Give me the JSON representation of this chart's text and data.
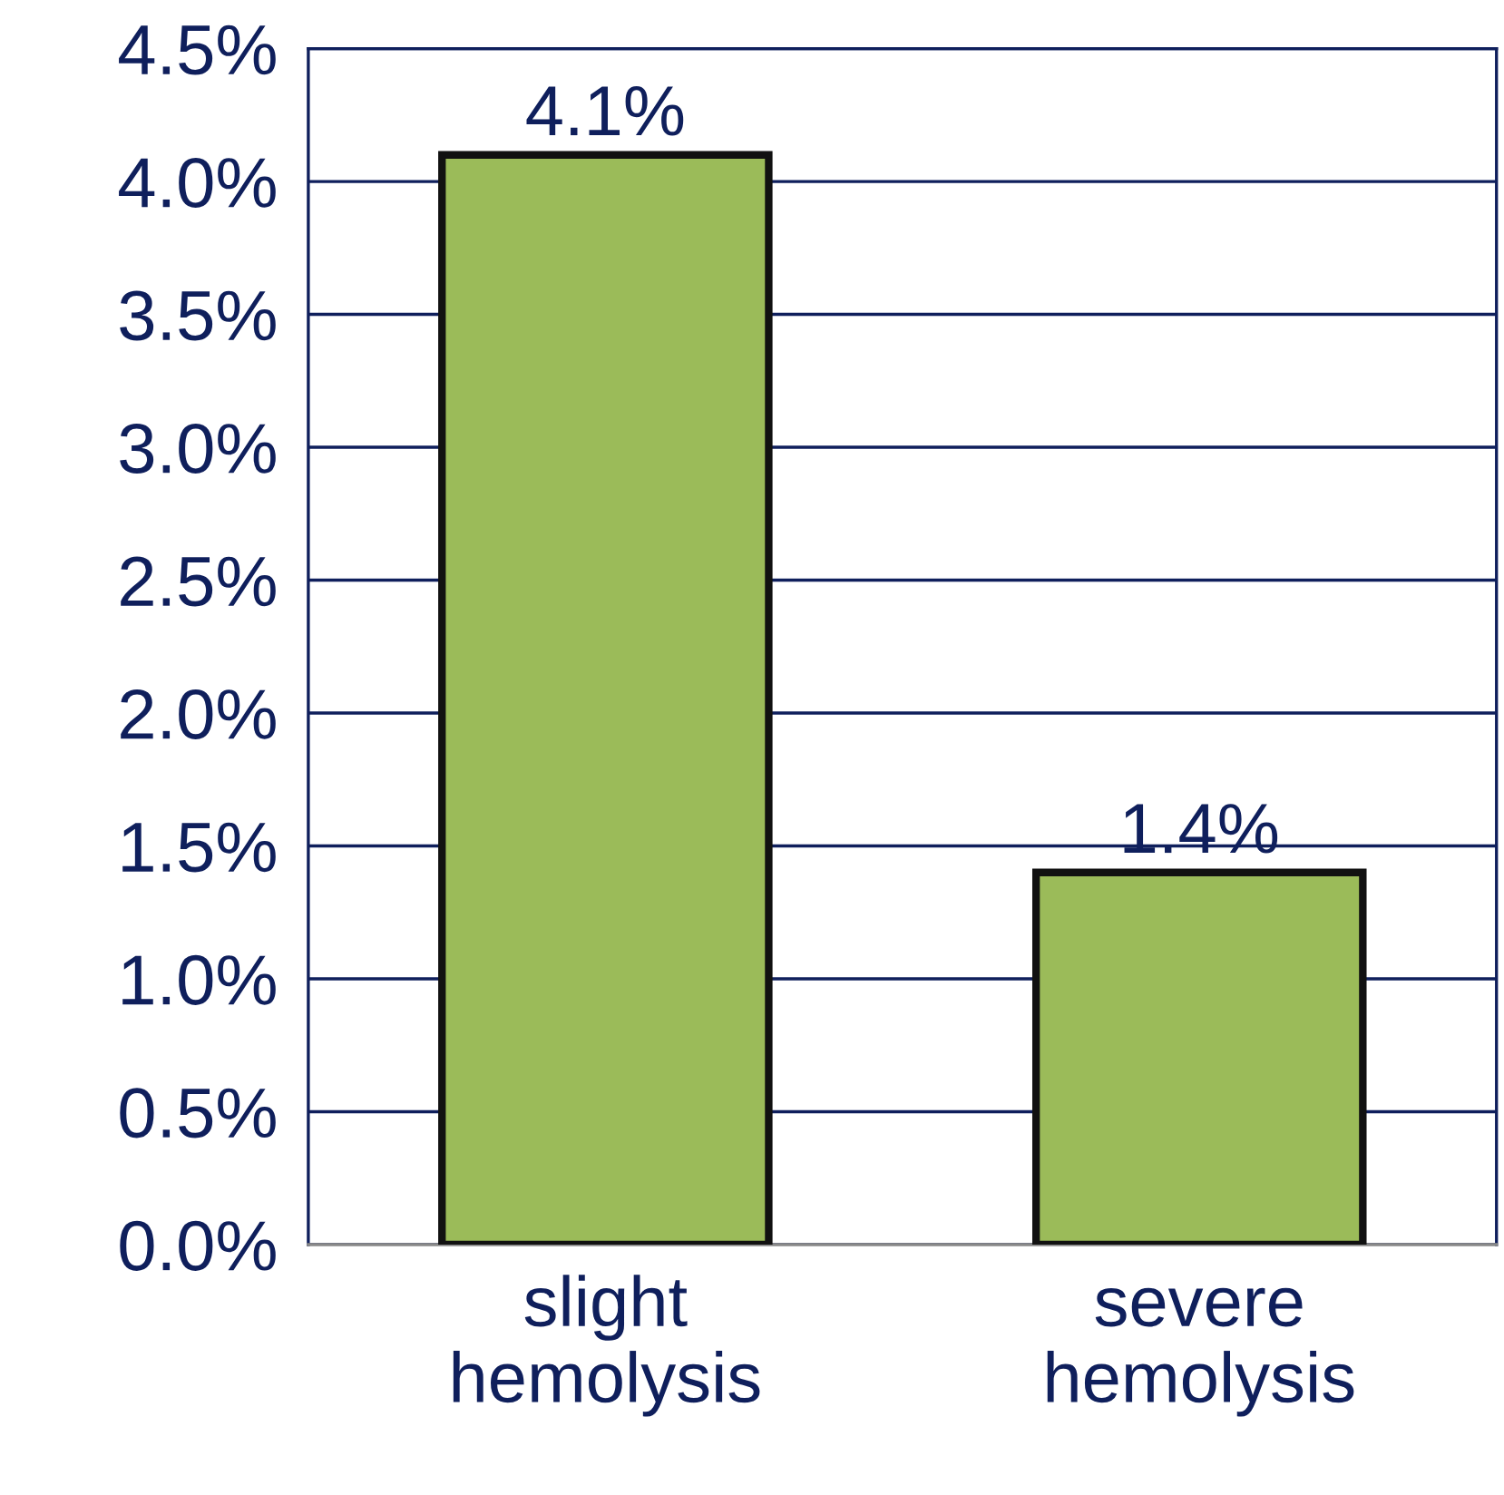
{
  "chart_data": {
    "type": "bar",
    "categories": [
      "slight\nhemolysis",
      "severe\nhemolysis"
    ],
    "values": [
      4.1,
      1.4
    ],
    "value_labels": [
      "4.1%",
      "1.4%"
    ],
    "color": "#9bbb59",
    "ylim": [
      0,
      4.5
    ],
    "yticks": [
      {
        "value": 0,
        "label": "0.0%"
      },
      {
        "value": 0.5,
        "label": "0.5%"
      },
      {
        "value": 1,
        "label": "1.0%"
      },
      {
        "value": 1.5,
        "label": "1.5%"
      },
      {
        "value": 2,
        "label": "2.0%"
      },
      {
        "value": 2.5,
        "label": "2.5%"
      },
      {
        "value": 3,
        "label": "3.0%"
      },
      {
        "value": 3.5,
        "label": "3.5%"
      },
      {
        "value": 4,
        "label": "4.0%"
      },
      {
        "value": 4.5,
        "label": "4.5%"
      }
    ],
    "grid": "y",
    "legend": false
  }
}
